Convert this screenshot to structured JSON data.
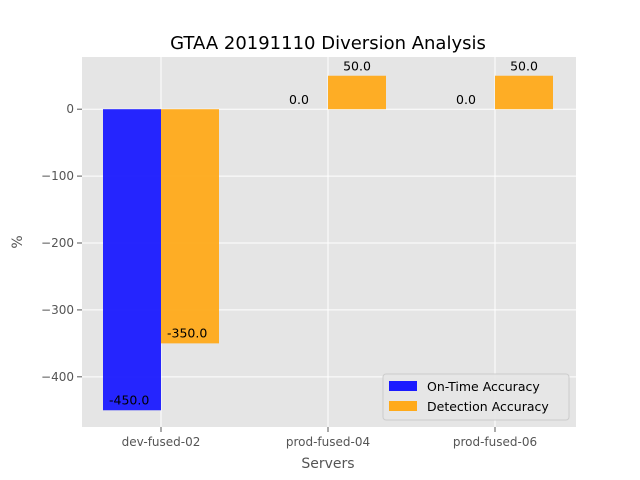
{
  "chart_data": {
    "type": "bar",
    "title": "GTAA 20191110 Diversion Analysis",
    "xlabel": "Servers",
    "ylabel": "%",
    "categories": [
      "dev-fused-02",
      "prod-fused-04",
      "prod-fused-06"
    ],
    "series": [
      {
        "name": "On-Time Accuracy",
        "color": "#1a1aff",
        "values": [
          -450.0,
          0.0,
          0.0
        ],
        "labels": [
          "-450.0",
          "0.0",
          "0.0"
        ]
      },
      {
        "name": "Detection Accuracy",
        "color": "#ffaa1a",
        "values": [
          -350.0,
          50.0,
          50.0
        ],
        "labels": [
          "-350.0",
          "50.0",
          "50.0"
        ]
      }
    ],
    "ylim": [
      -475,
      78
    ],
    "yticks": [
      0,
      -100,
      -200,
      -300,
      -400
    ],
    "ytick_labels": [
      "0",
      "−100",
      "−200",
      "−300",
      "−400"
    ],
    "grid": true,
    "background": "#e5e5e5",
    "legend_position": "lower-right"
  }
}
